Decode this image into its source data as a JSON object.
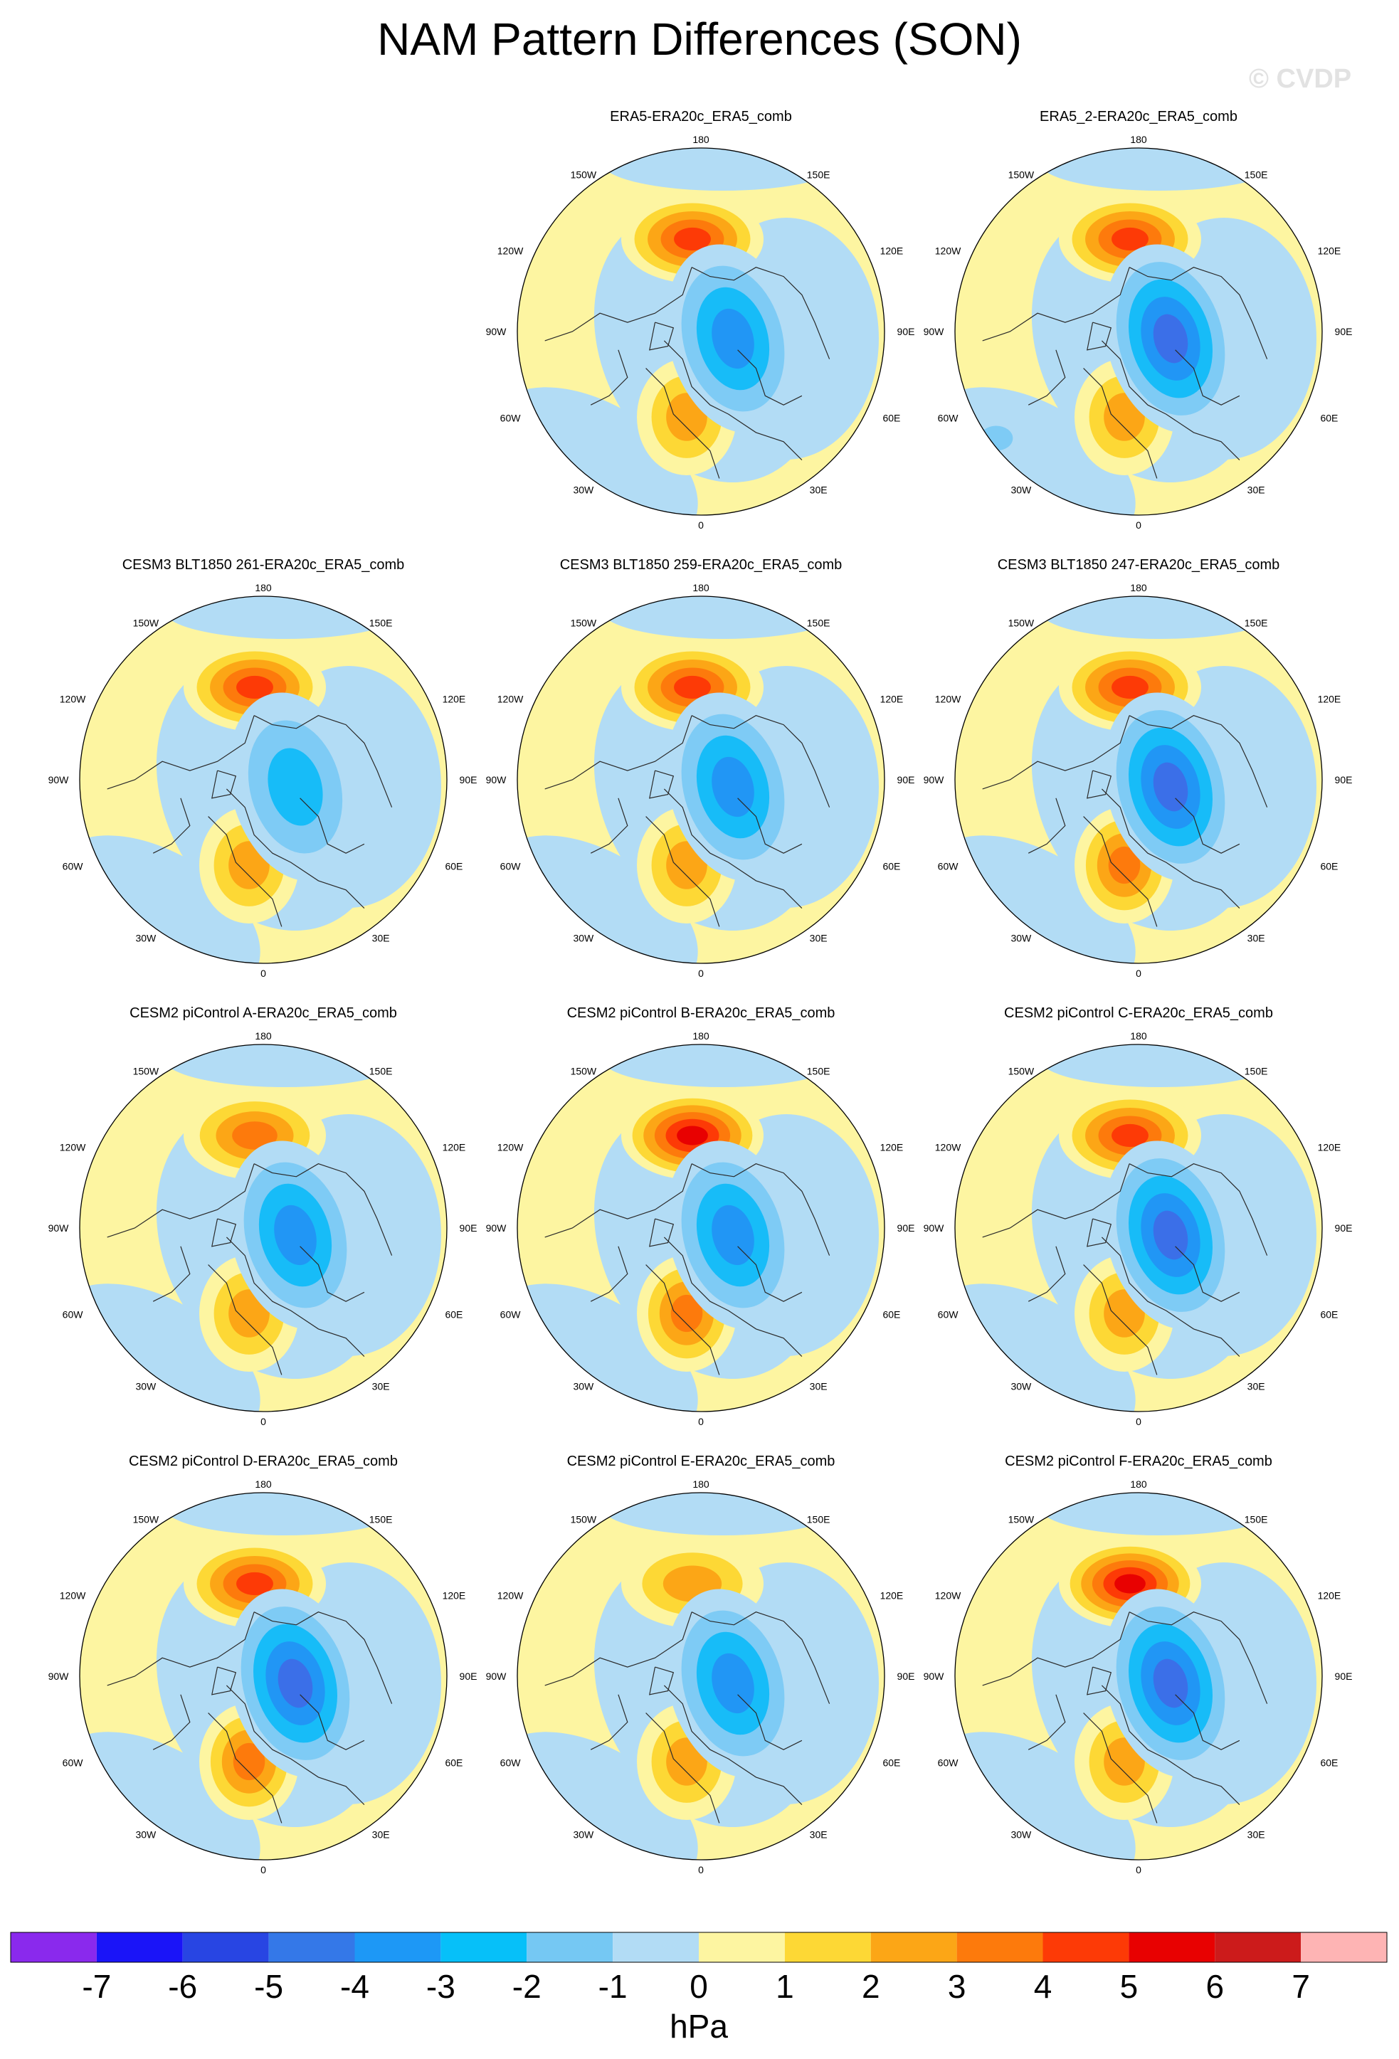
{
  "title": "NAM Pattern Differences (SON)",
  "watermark": "© CVDP",
  "colors": {
    "pos1": "#fdf5a1",
    "pos2": "#fdd835",
    "pos3": "#fca616",
    "pos4": "#fd7a0c",
    "pos5": "#fd3a06",
    "pos6": "#e80101",
    "neg1": "#b2dcf5",
    "neg2": "#7ecbf5",
    "neg3": "#17bcf8",
    "neg4": "#2196f5",
    "neg5": "#3b6fe8",
    "coast": "#2a2a2a"
  },
  "map_labels": {
    "top": "180",
    "bottom": "0",
    "left_upper": "150W",
    "right_upper": "150E",
    "left_120": "120W",
    "right_120": "120E",
    "left_90": "90W",
    "right_90": "90E",
    "left_60": "60W",
    "right_60": "60E",
    "left_lower": "30W",
    "right_lower": "30E"
  },
  "panels": [
    {
      "title": "ERA5-ERA20c_ERA5_comb",
      "pacific_max": 5,
      "siberia_min": -4,
      "atlantic_max": 3,
      "atlantic_neg": 0
    },
    {
      "title": "ERA5_2-ERA20c_ERA5_comb",
      "pacific_max": 5,
      "siberia_min": -5,
      "atlantic_max": 3,
      "atlantic_neg": -2
    },
    {
      "title": "CESM3 BLT1850 261-ERA20c_ERA5_comb",
      "pacific_max": 5,
      "siberia_min": -3,
      "atlantic_max": 3,
      "atlantic_neg": 0
    },
    {
      "title": "CESM3 BLT1850 259-ERA20c_ERA5_comb",
      "pacific_max": 5,
      "siberia_min": -4,
      "atlantic_max": 3,
      "atlantic_neg": 0
    },
    {
      "title": "CESM3 BLT1850 247-ERA20c_ERA5_comb",
      "pacific_max": 5,
      "siberia_min": -5,
      "atlantic_max": 4,
      "atlantic_neg": 0
    },
    {
      "title": "CESM2 piControl A-ERA20c_ERA5_comb",
      "pacific_max": 4,
      "siberia_min": -4,
      "atlantic_max": 3,
      "atlantic_neg": 0
    },
    {
      "title": "CESM2 piControl B-ERA20c_ERA5_comb",
      "pacific_max": 6,
      "siberia_min": -4,
      "atlantic_max": 4,
      "atlantic_neg": 0
    },
    {
      "title": "CESM2 piControl C-ERA20c_ERA5_comb",
      "pacific_max": 5,
      "siberia_min": -5,
      "atlantic_max": 3,
      "atlantic_neg": 0
    },
    {
      "title": "CESM2 piControl D-ERA20c_ERA5_comb",
      "pacific_max": 5,
      "siberia_min": -5,
      "atlantic_max": 4,
      "atlantic_neg": 0
    },
    {
      "title": "CESM2 piControl E-ERA20c_ERA5_comb",
      "pacific_max": 3,
      "siberia_min": -4,
      "atlantic_max": 3,
      "atlantic_neg": 0
    },
    {
      "title": "CESM2 piControl F-ERA20c_ERA5_comb",
      "pacific_max": 6,
      "siberia_min": -5,
      "atlantic_max": 3,
      "atlantic_neg": 0
    }
  ],
  "colorbar": {
    "colors": [
      "#8a29ed",
      "#1a14f8",
      "#2845e3",
      "#3478e8",
      "#1d98f6",
      "#06c0f9",
      "#75c8f3",
      "#b2dcf5",
      "#fdf5a1",
      "#fdd835",
      "#fca616",
      "#fd7a0c",
      "#fd3a06",
      "#e80101",
      "#cc1b1b",
      "#feb4b4"
    ],
    "ticks": [
      "-7",
      "-6",
      "-5",
      "-4",
      "-3",
      "-2",
      "-1",
      "0",
      "1",
      "2",
      "3",
      "4",
      "5",
      "6",
      "7"
    ],
    "units": "hPa"
  }
}
